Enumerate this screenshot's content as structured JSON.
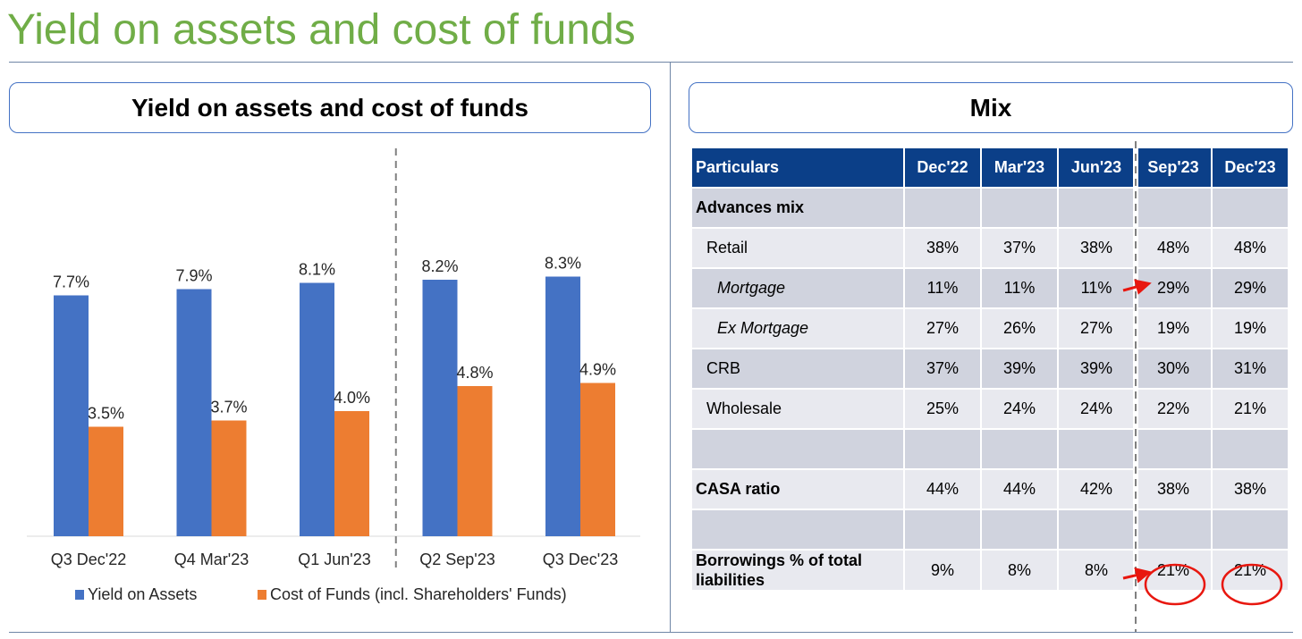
{
  "page_title": "Yield on assets and cost of funds",
  "chart_panel_title": "Yield on assets and cost of funds",
  "mix_panel_title": "Mix",
  "colors": {
    "title_green": "#70ad47",
    "yield_blue": "#4472c4",
    "cost_orange": "#ed7d31",
    "table_header": "#0b3f88",
    "annotation_red": "#e8170f"
  },
  "chart_data": {
    "type": "bar",
    "title": "Yield on assets and cost of funds",
    "categories": [
      "Q3 Dec'22",
      "Q4 Mar'23",
      "Q1 Jun'23",
      "Q2 Sep'23",
      "Q3 Dec'23"
    ],
    "series": [
      {
        "name": "Yield on Assets",
        "values": [
          7.7,
          7.9,
          8.1,
          8.2,
          8.3
        ],
        "labels": [
          "7.7%",
          "7.9%",
          "8.1%",
          "8.2%",
          "8.3%"
        ],
        "color": "#4472c4"
      },
      {
        "name": "Cost of Funds (incl. Shareholders' Funds)",
        "values": [
          3.5,
          3.7,
          4.0,
          4.8,
          4.9
        ],
        "labels": [
          "3.5%",
          "3.7%",
          "4.0%",
          "4.8%",
          "4.9%"
        ],
        "color": "#ed7d31"
      }
    ],
    "ylim": [
      0,
      10
    ],
    "grid": false,
    "legend": "bottom",
    "divider_after_category": 2
  },
  "mix_table": {
    "headers": [
      "Particulars",
      "Dec'22",
      "Mar'23",
      "Jun'23",
      "Sep'23",
      "Dec'23"
    ],
    "rows": [
      {
        "label": "Advances mix",
        "style": "bold",
        "values": [
          "",
          "",
          "",
          "",
          ""
        ]
      },
      {
        "label": "Retail",
        "style": "ind1",
        "values": [
          "38%",
          "37%",
          "38%",
          "48%",
          "48%"
        ]
      },
      {
        "label": "Mortgage",
        "style": "ind2",
        "values": [
          "11%",
          "11%",
          "11%",
          "29%",
          "29%"
        ]
      },
      {
        "label": "Ex Mortgage",
        "style": "ind2",
        "values": [
          "27%",
          "26%",
          "27%",
          "19%",
          "19%"
        ]
      },
      {
        "label": "CRB",
        "style": "ind1",
        "values": [
          "37%",
          "39%",
          "39%",
          "30%",
          "31%"
        ]
      },
      {
        "label": "Wholesale",
        "style": "ind1",
        "values": [
          "25%",
          "24%",
          "24%",
          "22%",
          "21%"
        ]
      },
      {
        "label": "",
        "style": "blank",
        "values": [
          "",
          "",
          "",
          "",
          ""
        ]
      },
      {
        "label": "CASA ratio",
        "style": "bold",
        "values": [
          "44%",
          "44%",
          "42%",
          "38%",
          "38%"
        ]
      },
      {
        "label": "",
        "style": "blank",
        "values": [
          "",
          "",
          "",
          "",
          ""
        ]
      },
      {
        "label": "Borrowings % of total liabilities",
        "style": "bold",
        "values": [
          "9%",
          "8%",
          "8%",
          "21%",
          "21%"
        ]
      }
    ]
  }
}
